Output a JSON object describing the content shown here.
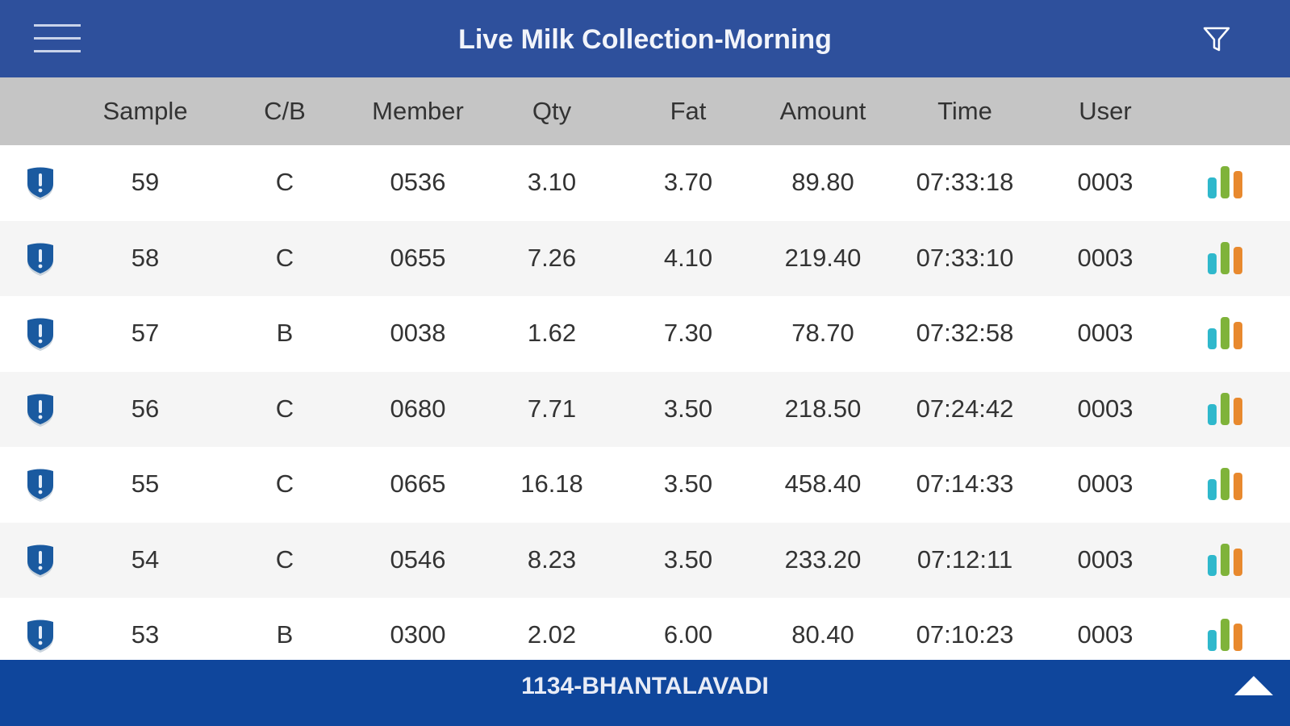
{
  "header": {
    "title": "Live Milk Collection-Morning",
    "menu_icon": "hamburger-icon",
    "filter_icon": "filter-icon"
  },
  "columns": [
    "Sample",
    "C/B",
    "Member",
    "Qty",
    "Fat",
    "Amount",
    "Time",
    "User"
  ],
  "rows": [
    [
      "59",
      "C",
      "0536",
      "3.10",
      "3.70",
      "89.80",
      "07:33:18",
      "0003"
    ],
    [
      "58",
      "C",
      "0655",
      "7.26",
      "4.10",
      "219.40",
      "07:33:10",
      "0003"
    ],
    [
      "57",
      "B",
      "0038",
      "1.62",
      "7.30",
      "78.70",
      "07:32:58",
      "0003"
    ],
    [
      "56",
      "C",
      "0680",
      "7.71",
      "3.50",
      "218.50",
      "07:24:42",
      "0003"
    ],
    [
      "55",
      "C",
      "0665",
      "16.18",
      "3.50",
      "458.40",
      "07:14:33",
      "0003"
    ],
    [
      "54",
      "C",
      "0546",
      "8.23",
      "3.50",
      "233.20",
      "07:12:11",
      "0003"
    ],
    [
      "53",
      "B",
      "0300",
      "2.02",
      "6.00",
      "80.40",
      "07:10:23",
      "0003"
    ]
  ],
  "footer": {
    "location": "1134-BHANTALAVADI"
  },
  "colors": {
    "header": "#2e509c",
    "footer": "#0f469c",
    "shield": "#1a5aa0",
    "bar1": "#2fb8cc",
    "bar2": "#7fb33a",
    "bar3": "#e8892e"
  }
}
